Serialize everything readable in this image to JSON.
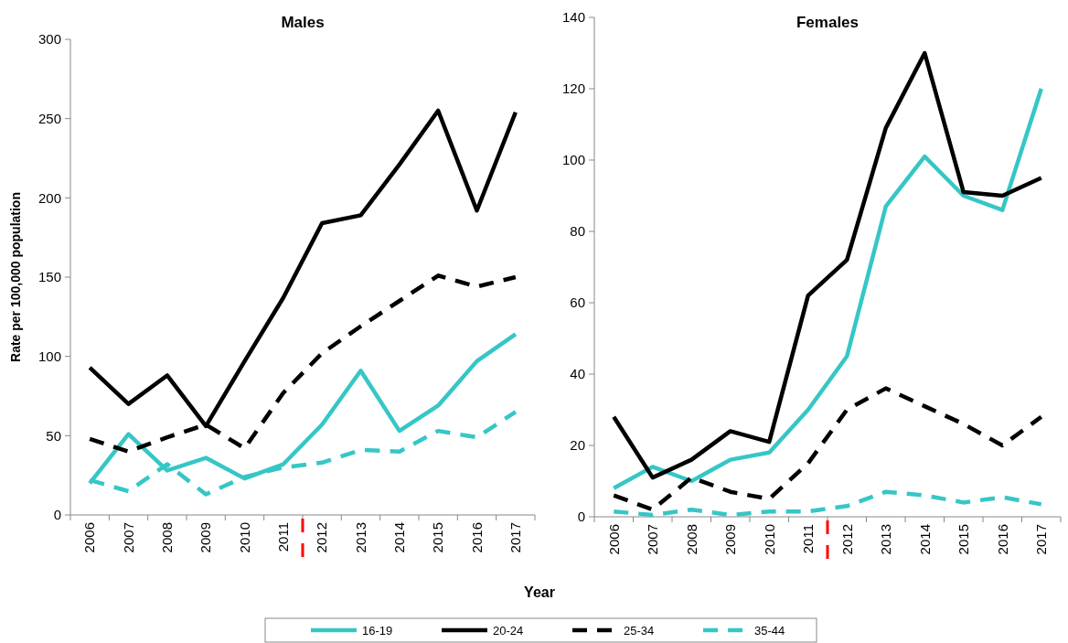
{
  "chart_data": [
    {
      "type": "line",
      "title": "Males",
      "xlabel": "Year",
      "ylabel": "Rate per 100,000 population",
      "categories": [
        "2006",
        "2007",
        "2008",
        "2009",
        "2010",
        "2011",
        "2012",
        "2013",
        "2014",
        "2015",
        "2016",
        "2017"
      ],
      "ylim": [
        0,
        300
      ],
      "yticks": [
        0,
        50,
        100,
        150,
        200,
        250,
        300
      ],
      "grid": false,
      "legend": "bottom",
      "series": [
        {
          "name": "16-19",
          "color": "#36c6c6",
          "line_style": "solid",
          "values": [
            20,
            51,
            28,
            36,
            23,
            32,
            57,
            91,
            53,
            69,
            97,
            114
          ]
        },
        {
          "name": "20-24",
          "color": "#000000",
          "line_style": "solid",
          "values": [
            93,
            70,
            88,
            56,
            97,
            137,
            184,
            189,
            221,
            255,
            192,
            254
          ]
        },
        {
          "name": "25-34",
          "color": "#000000",
          "line_style": "dashed",
          "values": [
            48,
            40,
            49,
            57,
            42,
            77,
            102,
            119,
            135,
            151,
            144,
            150
          ]
        },
        {
          "name": "35-44",
          "color": "#36c6c6",
          "line_style": "dashed",
          "values": [
            22,
            15,
            32,
            13,
            24,
            30,
            33,
            41,
            40,
            53,
            49,
            65
          ]
        }
      ]
    },
    {
      "type": "line",
      "title": "Females",
      "categories": [
        "2006",
        "2007",
        "2008",
        "2009",
        "2010",
        "2011",
        "2012",
        "2013",
        "2014",
        "2015",
        "2016",
        "2017"
      ],
      "ylim": [
        0,
        140
      ],
      "yticks": [
        0,
        20,
        40,
        60,
        80,
        100,
        120,
        140
      ],
      "grid": false,
      "series": [
        {
          "color": "#36c6c6",
          "line_style": "solid",
          "values": [
            8,
            14,
            10,
            16,
            18,
            30,
            45,
            87,
            101,
            90,
            86,
            120
          ]
        },
        {
          "color": "#000000",
          "line_style": "solid",
          "values": [
            28,
            11,
            16,
            24,
            21,
            62,
            72,
            109,
            130,
            91,
            90,
            95
          ]
        },
        {
          "color": "#000000",
          "line_style": "dashed",
          "values": [
            6,
            2,
            11,
            7,
            5,
            15,
            30,
            36,
            31,
            26,
            20,
            28
          ]
        },
        {
          "color": "#36c6c6",
          "line_style": "dashed",
          "values": [
            1.5,
            0.5,
            2,
            0.5,
            1.5,
            1.5,
            3,
            7,
            6,
            4,
            5.5,
            3.5
          ]
        }
      ]
    }
  ]
}
